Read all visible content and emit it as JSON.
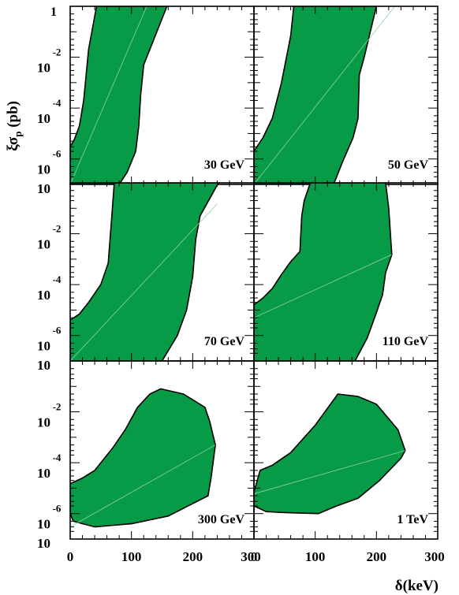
{
  "figure": {
    "ylabel_main": "ξσ",
    "ylabel_sub": "p",
    "ylabel_unit": " (pb)",
    "xlabel": "δ(keV)"
  },
  "colors": {
    "fill": "#079a47",
    "outline": "#000000",
    "diagonal": "#8fd4a5"
  },
  "chart_data": {
    "type": "area",
    "layout": "3x2 grid of panels sharing axes",
    "x_axis": {
      "label": "δ(keV)",
      "range": [
        0,
        300
      ],
      "ticks": [
        0,
        100,
        200,
        300
      ],
      "tick_labels": [
        "0",
        "100",
        "200",
        "300"
      ]
    },
    "y_axis": {
      "label": "ξσp (pb)",
      "scale": "log",
      "range": [
        1e-07,
        1
      ],
      "major_ticks": [
        1,
        0.01,
        0.0001,
        1e-06
      ],
      "tick_labels": [
        {
          "base": "1",
          "exp": ""
        },
        {
          "base": "10",
          "exp": "-2"
        },
        {
          "base": "10",
          "exp": "-4"
        },
        {
          "base": "10",
          "exp": "-6"
        }
      ]
    },
    "panels": [
      {
        "label": "30 GeV",
        "diagonal": [
          [
            0,
            1e-07
          ],
          [
            125,
            1
          ]
        ],
        "region": [
          [
            0,
            1e-07
          ],
          [
            0,
            3e-06
          ],
          [
            7,
            6e-06
          ],
          [
            15,
            2e-05
          ],
          [
            22,
            0.0002
          ],
          [
            30,
            0.02
          ],
          [
            43,
            1
          ],
          [
            158,
            1
          ],
          [
            120,
            0.005
          ],
          [
            115,
            0.0003
          ],
          [
            112,
            2e-05
          ],
          [
            107,
            2e-06
          ],
          [
            93,
            3e-07
          ],
          [
            80,
            1e-07
          ]
        ]
      },
      {
        "label": "50 GeV",
        "diagonal": [
          [
            0,
            1e-07
          ],
          [
            230,
            1
          ]
        ],
        "region": [
          [
            0,
            1e-07
          ],
          [
            0,
            2e-06
          ],
          [
            15,
            7e-06
          ],
          [
            30,
            4e-05
          ],
          [
            45,
            0.001
          ],
          [
            60,
            0.07
          ],
          [
            65,
            1
          ],
          [
            200,
            1
          ],
          [
            180,
            0.01
          ],
          [
            172,
            0.002
          ],
          [
            170,
            4e-05
          ],
          [
            162,
            7e-06
          ],
          [
            145,
            8e-07
          ],
          [
            130,
            1e-07
          ]
        ]
      },
      {
        "label": "70 GeV",
        "diagonal": [
          [
            0,
            1e-07
          ],
          [
            240,
            0.15
          ]
        ],
        "region": [
          [
            0,
            4e-06
          ],
          [
            15,
            7e-06
          ],
          [
            30,
            2e-05
          ],
          [
            50,
            0.0001
          ],
          [
            62,
            0.0007
          ],
          [
            68,
            0.05
          ],
          [
            72,
            1
          ],
          [
            242,
            1
          ],
          [
            212,
            0.05
          ],
          [
            205,
            0.006
          ],
          [
            200,
            0.0002
          ],
          [
            190,
            1e-05
          ],
          [
            175,
            1e-06
          ],
          [
            150,
            1e-07
          ],
          [
            0,
            1e-07
          ]
        ]
      },
      {
        "label": "110 GeV",
        "diagonal": [
          [
            0,
            5e-06
          ],
          [
            225,
            0.0015
          ]
        ],
        "region": [
          [
            0,
            1.6e-05
          ],
          [
            15,
            3e-05
          ],
          [
            30,
            7e-05
          ],
          [
            45,
            0.00025
          ],
          [
            60,
            0.0008
          ],
          [
            75,
            0.002
          ],
          [
            78,
            0.05
          ],
          [
            82,
            0.2
          ],
          [
            92,
            1
          ],
          [
            215,
            1
          ],
          [
            220,
            0.1
          ],
          [
            225,
            0.0015
          ],
          [
            215,
            0.0003
          ],
          [
            210,
            4e-05
          ],
          [
            200,
            8e-06
          ],
          [
            185,
            8e-07
          ],
          [
            165,
            1e-07
          ],
          [
            0,
            1e-07
          ]
        ]
      },
      {
        "label": "300 GeV",
        "diagonal": [
          [
            0,
            3e-07
          ],
          [
            237,
            0.0005
          ]
        ],
        "region": [
          [
            0,
            1.5e-05
          ],
          [
            20,
            2.5e-05
          ],
          [
            40,
            5e-05
          ],
          [
            70,
            0.0004
          ],
          [
            90,
            0.002
          ],
          [
            110,
            0.015
          ],
          [
            130,
            0.05
          ],
          [
            148,
            0.08
          ],
          [
            185,
            0.05
          ],
          [
            220,
            0.015
          ],
          [
            228,
            0.004
          ],
          [
            237,
            0.0005
          ],
          [
            230,
            2.5e-05
          ],
          [
            225,
            5e-06
          ],
          [
            160,
            8e-07
          ],
          [
            100,
            4e-07
          ],
          [
            40,
            3e-07
          ],
          [
            5,
            5e-07
          ],
          [
            0,
            1e-06
          ]
        ]
      },
      {
        "label": "1 TeV",
        "diagonal": [
          [
            0,
            6e-06
          ],
          [
            247,
            0.0003
          ]
        ],
        "region": [
          [
            0,
            7e-06
          ],
          [
            10,
            5e-05
          ],
          [
            30,
            8e-05
          ],
          [
            60,
            0.00025
          ],
          [
            100,
            0.003
          ],
          [
            137,
            0.05
          ],
          [
            170,
            0.04
          ],
          [
            200,
            0.02
          ],
          [
            235,
            0.002
          ],
          [
            247,
            0.0003
          ],
          [
            240,
            0.00015
          ],
          [
            205,
            2e-05
          ],
          [
            170,
            4e-06
          ],
          [
            135,
            2e-06
          ],
          [
            105,
            1e-06
          ],
          [
            50,
            1.1e-06
          ],
          [
            20,
            1.2e-06
          ],
          [
            0,
            2e-06
          ]
        ]
      }
    ]
  }
}
